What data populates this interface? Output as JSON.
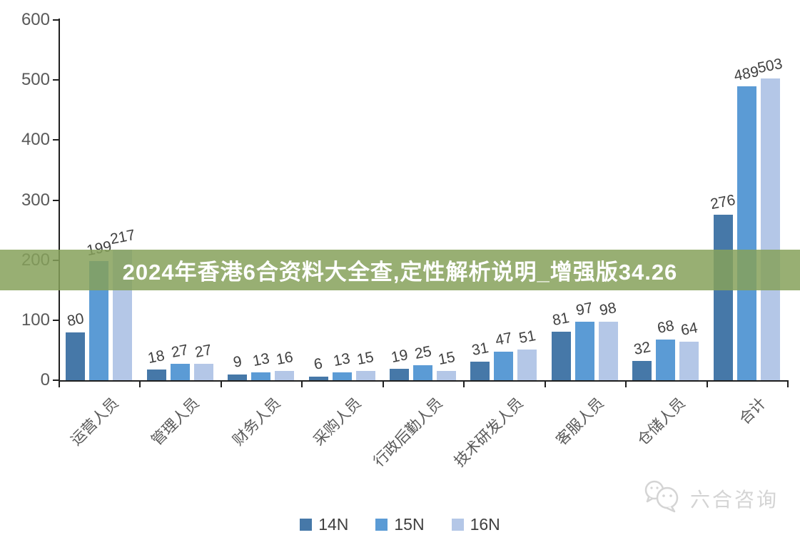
{
  "banner": {
    "title": "2024年香港6合资料大全查,定性解析说明_增强版34.26",
    "bg_color": "#93ac6e",
    "text_color": "#ffffff"
  },
  "watermark": {
    "text": "六合咨询",
    "icon": "wechat-chat-bubbles-icon",
    "color": "#d4d4d4"
  },
  "chart_data": {
    "type": "bar",
    "title": "",
    "xlabel": "",
    "ylabel": "",
    "categories": [
      "运营人员",
      "管理人员",
      "财务人员",
      "采购人员",
      "行政后勤人员",
      "技术研发人员",
      "客服人员",
      "仓储人员",
      "合计"
    ],
    "series": [
      {
        "name": "14N",
        "color": "#4678A8",
        "values": [
          80,
          18,
          9,
          6,
          19,
          31,
          81,
          32,
          276
        ]
      },
      {
        "name": "15N",
        "color": "#5B9BD5",
        "values": [
          199,
          27,
          13,
          13,
          25,
          47,
          97,
          68,
          489
        ]
      },
      {
        "name": "16N",
        "color": "#B4C7E7",
        "values": [
          217,
          27,
          16,
          15,
          15,
          51,
          98,
          64,
          503
        ]
      }
    ],
    "ylim": [
      0,
      600
    ],
    "yticks": [
      0,
      100,
      200,
      300,
      400,
      500,
      600
    ],
    "grid": false,
    "legend_position": "bottom",
    "axis_color": "#1f1f1f",
    "tick_label_color": "#595959",
    "value_label_color": "#404040"
  }
}
